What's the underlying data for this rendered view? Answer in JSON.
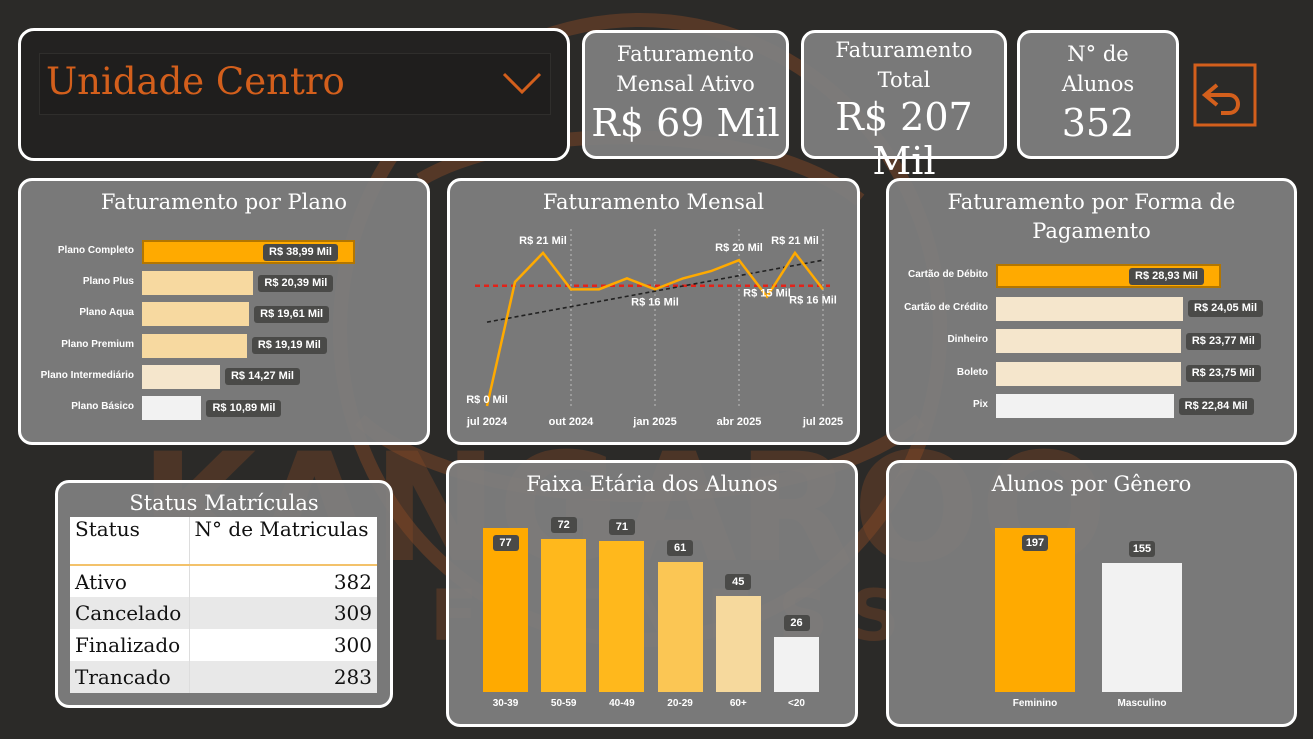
{
  "filter": {
    "selected": "Unidade Centro"
  },
  "kpis": [
    {
      "label": "Faturamento Mensal Ativo",
      "value": "R$ 69 Mil"
    },
    {
      "label": "Faturamento Total",
      "value": "R$ 207 Mil"
    },
    {
      "label": "N° de Alunos",
      "value": "352"
    }
  ],
  "colors": {
    "accent": "#ffaa00",
    "brand": "#c65d1e",
    "panel": "#808080",
    "background": "#2b2a28"
  },
  "icons": {
    "back": "back-arrow-icon",
    "dropdown": "chevron-down-icon"
  },
  "status_table": {
    "title": "Status Matrículas",
    "headers": [
      "Status",
      "N° de Matriculas"
    ],
    "rows": [
      {
        "status": "Ativo",
        "count": "382"
      },
      {
        "status": "Cancelado",
        "count": "309"
      },
      {
        "status": "Finalizado",
        "count": "300"
      },
      {
        "status": "Trancado",
        "count": "283"
      }
    ]
  },
  "chart_data": [
    {
      "id": "plano",
      "type": "bar",
      "orientation": "horizontal",
      "title": "Faturamento por Plano",
      "categories": [
        "Plano Completo",
        "Plano Plus",
        "Plano Aqua",
        "Plano Premium",
        "Plano Intermediário",
        "Plano Básico"
      ],
      "values": [
        38.99,
        20.39,
        19.61,
        19.19,
        14.27,
        10.89
      ],
      "labels": [
        "R$ 38,99 Mil",
        "R$ 20,39 Mil",
        "R$ 19,61 Mil",
        "R$ 19,19 Mil",
        "R$ 14,27 Mil",
        "R$ 10,89 Mil"
      ],
      "colors": [
        "#ffaa00",
        "#f7d9a0",
        "#f7d9a0",
        "#f7d9a0",
        "#f5e6cc",
        "#f2f2f2"
      ]
    },
    {
      "id": "mensal",
      "type": "line",
      "title": "Faturamento Mensal",
      "x": [
        "2024-07",
        "2024-08",
        "2024-09",
        "2024-10",
        "2024-11",
        "2024-12",
        "2025-01",
        "2025-02",
        "2025-03",
        "2025-04",
        "2025-05",
        "2025-06",
        "2025-07"
      ],
      "values": [
        0,
        17,
        21,
        16,
        16,
        17.5,
        16,
        17.5,
        18.5,
        20,
        15,
        21,
        16
      ],
      "point_labels": [
        "R$ 0 Mil",
        "",
        "R$ 21 Mil",
        "",
        "",
        "",
        "R$ 16 Mil",
        "",
        "",
        "R$ 20 Mil",
        "R$ 15 Mil",
        "R$ 21 Mil",
        "R$ 16 Mil"
      ],
      "x_ticks": [
        "jul 2024",
        "out 2024",
        "jan 2025",
        "abr 2025",
        "jul 2025"
      ],
      "average": 16.5,
      "trend": [
        11.5,
        20
      ],
      "ylim": [
        0,
        24
      ],
      "line_color": "#ffaa00",
      "average_color": "#e2231a"
    },
    {
      "id": "pagamento",
      "type": "bar",
      "orientation": "horizontal",
      "title": "Faturamento por Forma de Pagamento",
      "categories": [
        "Cartão de Débito",
        "Cartão de Crédito",
        "Dinheiro",
        "Boleto",
        "Pix"
      ],
      "values": [
        28.93,
        24.05,
        23.77,
        23.75,
        22.84
      ],
      "labels": [
        "R$ 28,93 Mil",
        "R$ 24,05 Mil",
        "R$ 23,77 Mil",
        "R$ 23,75 Mil",
        "R$ 22,84 Mil"
      ],
      "colors": [
        "#ffaa00",
        "#f5e6cc",
        "#f5e6cc",
        "#f5e6cc",
        "#f2f2f2"
      ]
    },
    {
      "id": "faixa",
      "type": "bar",
      "orientation": "vertical",
      "title": "Faixa Etária dos Alunos",
      "categories": [
        "30-39",
        "50-59",
        "40-49",
        "20-29",
        "60+",
        "<20"
      ],
      "values": [
        77,
        72,
        71,
        61,
        45,
        26
      ],
      "colors": [
        "#ffaa00",
        "#ffb81c",
        "#ffb81c",
        "#fbc654",
        "#f6d99d",
        "#f2f2f2"
      ]
    },
    {
      "id": "genero",
      "type": "bar",
      "orientation": "vertical",
      "title": "Alunos por Gênero",
      "categories": [
        "Feminino",
        "Masculino"
      ],
      "values": [
        197,
        155
      ],
      "colors": [
        "#ffaa00",
        "#f2f2f2"
      ]
    }
  ]
}
